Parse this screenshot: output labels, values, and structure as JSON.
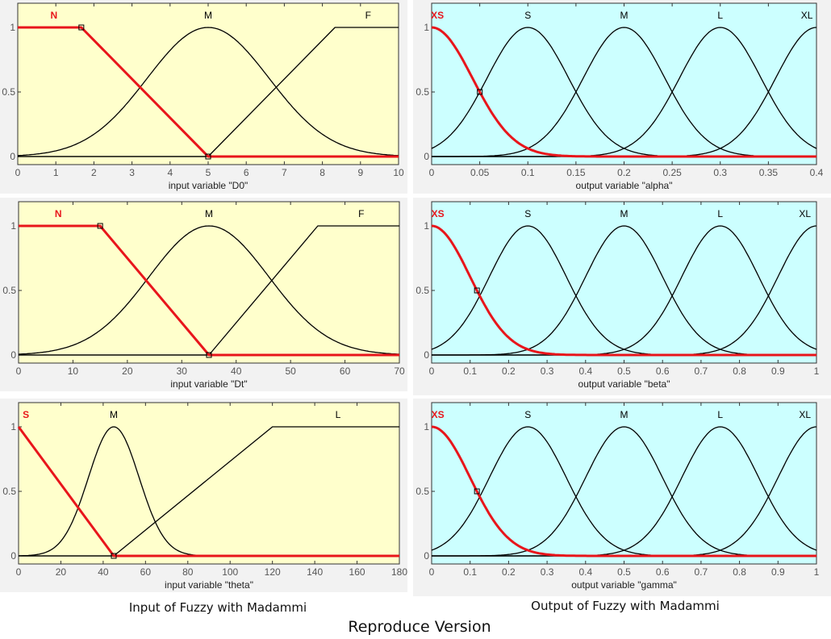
{
  "chart_data": [
    {
      "type": "line",
      "background": "#ffffcc",
      "xlabel": "input variable \"D0\"",
      "xlim": [
        0,
        10
      ],
      "ylim": [
        0,
        1
      ],
      "xticks": [
        0,
        1,
        2,
        3,
        4,
        5,
        6,
        7,
        8,
        9,
        10
      ],
      "yticks": [
        0,
        0.5,
        1
      ],
      "ytick_labels": [
        "0",
        "0.5",
        "1"
      ],
      "highlight_color": "#e8151b",
      "series": [
        {
          "name": "N",
          "shape": "trapezoid",
          "points": [
            [
              0,
              1
            ],
            [
              1.67,
              1
            ],
            [
              5,
              0
            ],
            [
              10,
              0
            ]
          ],
          "highlighted": true
        },
        {
          "name": "M",
          "shape": "gauss",
          "mean": 5,
          "sigma": 1.6
        },
        {
          "name": "F",
          "shape": "trapezoid",
          "points": [
            [
              0,
              0
            ],
            [
              5,
              0
            ],
            [
              8.33,
              1
            ],
            [
              10,
              1
            ]
          ]
        }
      ],
      "labels": [
        {
          "text": "N",
          "x": 0.95,
          "red": true
        },
        {
          "text": "M",
          "x": 5
        },
        {
          "text": "F",
          "x": 9.2
        }
      ]
    },
    {
      "type": "line",
      "background": "#ccffff",
      "xlabel": "output variable \"alpha\"",
      "xlim": [
        0,
        0.4
      ],
      "ylim": [
        0,
        1
      ],
      "xticks": [
        0,
        0.05,
        0.1,
        0.15,
        0.2,
        0.25,
        0.3,
        0.35,
        0.4
      ],
      "yticks": [
        0,
        0.5,
        1
      ],
      "ytick_labels": [
        "0",
        "0.5",
        "1"
      ],
      "highlight_color": "#e8151b",
      "series": [
        {
          "name": "XS",
          "shape": "gauss",
          "mean": 0,
          "sigma": 0.0425,
          "highlighted": true
        },
        {
          "name": "S",
          "shape": "gauss",
          "mean": 0.1,
          "sigma": 0.0425
        },
        {
          "name": "M",
          "shape": "gauss",
          "mean": 0.2,
          "sigma": 0.0425
        },
        {
          "name": "L",
          "shape": "gauss",
          "mean": 0.3,
          "sigma": 0.0425
        },
        {
          "name": "XL",
          "shape": "gauss",
          "mean": 0.4,
          "sigma": 0.0425
        }
      ],
      "labels": [
        {
          "text": "XS",
          "x": 0.006,
          "red": true
        },
        {
          "text": "S",
          "x": 0.1
        },
        {
          "text": "M",
          "x": 0.2
        },
        {
          "text": "L",
          "x": 0.3
        },
        {
          "text": "XL",
          "x": 0.39
        }
      ]
    },
    {
      "type": "line",
      "background": "#ffffcc",
      "xlabel": "input variable \"Dt\"",
      "xlim": [
        0,
        70
      ],
      "ylim": [
        0,
        1
      ],
      "xticks": [
        0,
        10,
        20,
        30,
        40,
        50,
        60,
        70
      ],
      "yticks": [
        0,
        0.5,
        1
      ],
      "ytick_labels": [
        "0",
        "0.5",
        "1"
      ],
      "highlight_color": "#e8151b",
      "series": [
        {
          "name": "N",
          "shape": "trapezoid",
          "points": [
            [
              0,
              1
            ],
            [
              15,
              1
            ],
            [
              35,
              0
            ],
            [
              70,
              0
            ]
          ],
          "highlighted": true
        },
        {
          "name": "M",
          "shape": "gauss",
          "mean": 35,
          "sigma": 11
        },
        {
          "name": "F",
          "shape": "trapezoid",
          "points": [
            [
              0,
              0
            ],
            [
              35,
              0
            ],
            [
              55,
              1
            ],
            [
              70,
              1
            ]
          ]
        }
      ],
      "labels": [
        {
          "text": "N",
          "x": 7.3,
          "red": true
        },
        {
          "text": "M",
          "x": 35
        },
        {
          "text": "F",
          "x": 63
        }
      ]
    },
    {
      "type": "line",
      "background": "#ccffff",
      "xlabel": "output variable \"beta\"",
      "xlim": [
        0,
        1
      ],
      "ylim": [
        0,
        1
      ],
      "xticks": [
        0,
        0.1,
        0.2,
        0.3,
        0.4,
        0.5,
        0.6,
        0.7,
        0.8,
        0.9,
        1
      ],
      "xtick_labels": [
        "0",
        "0.1",
        "0.2",
        "0.3",
        "0.4",
        "0.5",
        "0.6",
        "0.7",
        "0.8",
        "0.9",
        "1"
      ],
      "yticks": [
        0,
        0.5,
        1
      ],
      "ytick_labels": [
        "0",
        "0.5",
        "1"
      ],
      "highlight_color": "#e8151b",
      "series": [
        {
          "name": "XS",
          "shape": "gauss",
          "mean": 0,
          "sigma": 0.1,
          "highlighted": true
        },
        {
          "name": "S",
          "shape": "gauss",
          "mean": 0.25,
          "sigma": 0.1
        },
        {
          "name": "M",
          "shape": "gauss",
          "mean": 0.5,
          "sigma": 0.1
        },
        {
          "name": "L",
          "shape": "gauss",
          "mean": 0.75,
          "sigma": 0.1
        },
        {
          "name": "XL",
          "shape": "gauss",
          "mean": 1,
          "sigma": 0.1
        }
      ],
      "labels": [
        {
          "text": "XS",
          "x": 0.016,
          "red": true
        },
        {
          "text": "S",
          "x": 0.25
        },
        {
          "text": "M",
          "x": 0.5
        },
        {
          "text": "L",
          "x": 0.75
        },
        {
          "text": "XL",
          "x": 0.97
        }
      ]
    },
    {
      "type": "line",
      "background": "#ffffcc",
      "xlabel": "input variable \"theta\"",
      "xlim": [
        0,
        180
      ],
      "ylim": [
        0,
        1
      ],
      "xticks": [
        0,
        20,
        40,
        60,
        80,
        100,
        120,
        140,
        160,
        180
      ],
      "xtick_labels": [
        "0",
        "20",
        "40",
        "60",
        "80",
        "100",
        "120",
        "140",
        "160",
        "180"
      ],
      "yticks": [
        0,
        0.5,
        1
      ],
      "ytick_labels": [
        "0",
        "0.5",
        "1"
      ],
      "highlight_color": "#e8151b",
      "series": [
        {
          "name": "S",
          "shape": "trapezoid",
          "points": [
            [
              0,
              1
            ],
            [
              45,
              0
            ],
            [
              180,
              0
            ]
          ],
          "highlighted": true
        },
        {
          "name": "M",
          "shape": "gauss",
          "mean": 45,
          "sigma": 12
        },
        {
          "name": "L",
          "shape": "trapezoid",
          "points": [
            [
              0,
              0
            ],
            [
              45,
              0
            ],
            [
              120,
              1
            ],
            [
              180,
              1
            ]
          ]
        }
      ],
      "labels": [
        {
          "text": "S",
          "x": 3.5,
          "red": true
        },
        {
          "text": "M",
          "x": 45
        },
        {
          "text": "L",
          "x": 151
        }
      ]
    },
    {
      "type": "line",
      "background": "#ccffff",
      "xlabel": "output variable \"gamma\"",
      "xlim": [
        0,
        1
      ],
      "ylim": [
        0,
        1
      ],
      "xticks": [
        0,
        0.1,
        0.2,
        0.3,
        0.4,
        0.5,
        0.6,
        0.7,
        0.8,
        0.9,
        1
      ],
      "xtick_labels": [
        "0",
        "0.1",
        "0.2",
        "0.3",
        "0.4",
        "0.5",
        "0.6",
        "0.7",
        "0.8",
        "0.9",
        "1"
      ],
      "yticks": [
        0,
        0.5,
        1
      ],
      "ytick_labels": [
        "0",
        "0.5",
        "1"
      ],
      "highlight_color": "#e8151b",
      "series": [
        {
          "name": "XS",
          "shape": "gauss",
          "mean": 0,
          "sigma": 0.1,
          "highlighted": true
        },
        {
          "name": "S",
          "shape": "gauss",
          "mean": 0.25,
          "sigma": 0.1
        },
        {
          "name": "M",
          "shape": "gauss",
          "mean": 0.5,
          "sigma": 0.1
        },
        {
          "name": "L",
          "shape": "gauss",
          "mean": 0.75,
          "sigma": 0.1
        },
        {
          "name": "XL",
          "shape": "gauss",
          "mean": 1,
          "sigma": 0.1
        }
      ],
      "labels": [
        {
          "text": "XS",
          "x": 0.016,
          "red": true
        },
        {
          "text": "S",
          "x": 0.25
        },
        {
          "text": "M",
          "x": 0.5
        },
        {
          "text": "L",
          "x": 0.75
        },
        {
          "text": "XL",
          "x": 0.97
        }
      ]
    }
  ],
  "captions": {
    "left": "Input of Fuzzy with Madammi",
    "right": "Output of Fuzzy with Madammi",
    "main": "Reproduce Version"
  }
}
